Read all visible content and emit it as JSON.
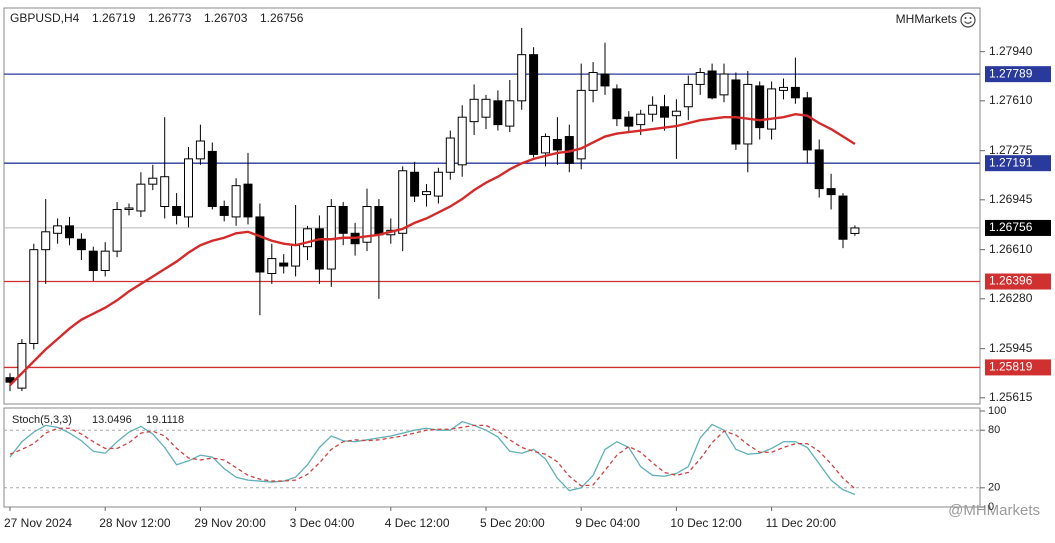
{
  "chart_data": [
    {
      "type": "candlestick",
      "symbol": "GBPUSD,H4",
      "quote": [
        1.26719,
        1.26773,
        1.26703,
        1.26756
      ],
      "brand": "MHMarkets",
      "watermark": "@MHMarkets",
      "categories": [
        "27 Nov 2024",
        null,
        null,
        null,
        null,
        null,
        null,
        null,
        "28 Nov 12:00",
        null,
        null,
        null,
        null,
        null,
        null,
        null,
        "29 Nov 20:00",
        null,
        null,
        null,
        null,
        null,
        null,
        null,
        "3 Dec 04:00",
        null,
        null,
        null,
        null,
        null,
        null,
        null,
        "4 Dec 12:00",
        null,
        null,
        null,
        null,
        null,
        null,
        null,
        "5 Dec 20:00",
        null,
        null,
        null,
        null,
        null,
        null,
        null,
        "9 Dec 04:00",
        null,
        null,
        null,
        null,
        null,
        null,
        null,
        "10 Dec 12:00",
        null,
        null,
        null,
        null,
        null,
        null,
        null,
        "11 Dec 20:00",
        null,
        null,
        null,
        null,
        null,
        null,
        null
      ],
      "open": [
        1.2575,
        1.2568,
        1.2598,
        1.2661,
        1.2672,
        1.2677,
        1.2668,
        1.266,
        1.2647,
        1.266,
        1.2688,
        1.2687,
        1.2705,
        1.269,
        1.269,
        1.2683,
        1.2722,
        1.2727,
        1.269,
        1.2683,
        1.2705,
        1.2683,
        1.2645,
        1.2652,
        1.265,
        1.2663,
        1.2675,
        1.2648,
        1.269,
        1.2672,
        1.2666,
        1.269,
        1.2671,
        1.2672,
        1.2713,
        1.2698,
        1.2697,
        1.2713,
        1.2718,
        1.2747,
        1.275,
        1.2761,
        1.2744,
        1.2761,
        1.2792,
        1.2726,
        1.2735,
        1.2737,
        1.2722,
        1.2768,
        1.2779,
        1.2769,
        1.275,
        1.2745,
        1.2752,
        1.2757,
        1.2751,
        1.2757,
        1.2772,
        1.2781,
        1.2765,
        1.2775,
        1.2732,
        1.2771,
        1.2742,
        1.2768,
        1.277,
        1.2763,
        1.2728,
        1.2702,
        1.2697,
        1.26719
      ],
      "high": [
        1.2578,
        1.2601,
        1.2665,
        1.2695,
        1.2682,
        1.2683,
        1.2672,
        1.2663,
        1.2666,
        1.2693,
        1.2692,
        1.2713,
        1.2718,
        1.275,
        1.2699,
        1.273,
        1.2745,
        1.2733,
        1.2694,
        1.2709,
        1.2726,
        1.2692,
        1.2665,
        1.2658,
        1.2691,
        1.2677,
        1.2684,
        1.2695,
        1.2693,
        1.2679,
        1.2702,
        1.2695,
        1.2682,
        1.2717,
        1.272,
        1.2705,
        1.2716,
        1.2741,
        1.2758,
        1.2772,
        1.2765,
        1.2768,
        1.2775,
        1.281,
        1.2797,
        1.2739,
        1.275,
        1.2745,
        1.2786,
        1.2787,
        1.28,
        1.2772,
        1.2754,
        1.2755,
        1.2764,
        1.2765,
        1.2762,
        1.2778,
        1.2783,
        1.2786,
        1.2786,
        1.278,
        1.2781,
        1.2774,
        1.2774,
        1.2776,
        1.279,
        1.2767,
        1.2735,
        1.2712,
        1.2699,
        1.26773
      ],
      "low": [
        1.2566,
        1.2566,
        1.2594,
        1.2638,
        1.2665,
        1.2664,
        1.2654,
        1.264,
        1.2643,
        1.2656,
        1.2684,
        1.2683,
        1.2701,
        1.2682,
        1.2678,
        1.2676,
        1.2718,
        1.2688,
        1.268,
        1.2677,
        1.2678,
        1.2617,
        1.2638,
        1.2645,
        1.2643,
        1.2654,
        1.2638,
        1.2636,
        1.2664,
        1.2657,
        1.266,
        1.2628,
        1.2665,
        1.266,
        1.2693,
        1.269,
        1.2692,
        1.2708,
        1.271,
        1.2738,
        1.2742,
        1.2741,
        1.274,
        1.2755,
        1.2723,
        1.2717,
        1.2718,
        1.2713,
        1.2715,
        1.276,
        1.2765,
        1.2744,
        1.274,
        1.2738,
        1.2747,
        1.2741,
        1.2722,
        1.2748,
        1.2765,
        1.2762,
        1.276,
        1.2728,
        1.2713,
        1.2735,
        1.2735,
        1.2762,
        1.2759,
        1.2719,
        1.2696,
        1.2688,
        1.2662,
        1.26703
      ],
      "close": [
        1.2572,
        1.2598,
        1.2661,
        1.2673,
        1.2677,
        1.2669,
        1.2661,
        1.2647,
        1.266,
        1.2688,
        1.2689,
        1.2705,
        1.2709,
        1.271,
        1.2684,
        1.2722,
        1.2734,
        1.269,
        1.2684,
        1.2704,
        1.2683,
        1.2646,
        1.2655,
        1.265,
        1.2664,
        1.2675,
        1.2648,
        1.269,
        1.2672,
        1.2665,
        1.269,
        1.2671,
        1.2674,
        1.2714,
        1.2697,
        1.27,
        1.2713,
        1.2736,
        1.275,
        1.2762,
        1.2762,
        1.2745,
        1.2761,
        1.2792,
        1.2725,
        1.2737,
        1.2728,
        1.2719,
        1.2768,
        1.278,
        1.2771,
        1.2749,
        1.2744,
        1.2752,
        1.2758,
        1.275,
        1.2754,
        1.2772,
        1.278,
        1.2763,
        1.2779,
        1.2732,
        1.2772,
        1.2743,
        1.2769,
        1.277,
        1.2763,
        1.2728,
        1.2702,
        1.2698,
        1.2668,
        1.26756
      ],
      "bull_color": "#ffffff",
      "bear_color": "#000000",
      "moving_average": {
        "color": "#d42a2a",
        "values": [
          1.257,
          1.2578,
          1.2586,
          1.2594,
          1.2601,
          1.2608,
          1.2614,
          1.2618,
          1.2622,
          1.2627,
          1.2633,
          1.2638,
          1.2643,
          1.2648,
          1.2653,
          1.2659,
          1.2664,
          1.2667,
          1.2669,
          1.2672,
          1.2673,
          1.267,
          1.2667,
          1.2665,
          1.2664,
          1.2666,
          1.2668,
          1.2668,
          1.2669,
          1.2669,
          1.267,
          1.2671,
          1.2673,
          1.2675,
          1.2679,
          1.2682,
          1.2686,
          1.269,
          1.2695,
          1.2701,
          1.2706,
          1.271,
          1.2715,
          1.2719,
          1.2722,
          1.2724,
          1.2726,
          1.2727,
          1.2729,
          1.2733,
          1.2737,
          1.2739,
          1.274,
          1.2741,
          1.2742,
          1.2743,
          1.2744,
          1.2746,
          1.2748,
          1.2749,
          1.275,
          1.275,
          1.2749,
          1.2748,
          1.2749,
          1.275,
          1.2752,
          1.2751,
          1.2746,
          1.2742,
          1.2737,
          1.2732
        ]
      },
      "levels": [
        {
          "value": 1.27789,
          "color": "#2a3a9c"
        },
        {
          "value": 1.27191,
          "color": "#2a3a9c"
        },
        {
          "value": 1.26396,
          "color": "#d03030"
        },
        {
          "value": 1.25819,
          "color": "#d03030"
        }
      ],
      "last_price": {
        "value": 1.26756,
        "color": "#b8b8b8",
        "label_color": "#000000"
      },
      "ylim": [
        1.2558,
        1.2822
      ],
      "yticks": [
        {
          "value": 1.2794,
          "label": "1.27940"
        },
        {
          "value": 1.2761,
          "label": "1.27610"
        },
        1.27275,
        1.26945,
        {
          "value": 1.2661,
          "label": "1.26610"
        },
        {
          "value": 1.2628,
          "label": "1.26280"
        },
        1.25945,
        1.25615
      ],
      "grid": false
    },
    {
      "type": "line",
      "title": "Stoch(5,3,3)",
      "readout": [
        13.0496,
        19.1118
      ],
      "series": [
        {
          "color": "#5fb0b8",
          "dash": false,
          "values": [
            52,
            68,
            78,
            85,
            83,
            77,
            69,
            58,
            56,
            68,
            78,
            84,
            76,
            62,
            44,
            48,
            54,
            52,
            40,
            31,
            28,
            27,
            26,
            27,
            31,
            44,
            62,
            74,
            69,
            68,
            70,
            72,
            74,
            77,
            80,
            82,
            80,
            80,
            89,
            85,
            80,
            73,
            58,
            56,
            60,
            50,
            30,
            17,
            20,
            33,
            60,
            68,
            62,
            42,
            33,
            32,
            35,
            42,
            72,
            86,
            80,
            60,
            55,
            56,
            61,
            68,
            68,
            62,
            45,
            28,
            18,
            13.0496
          ]
        },
        {
          "color": "#d04040",
          "dash": true,
          "values": [
            55,
            60,
            66,
            77,
            82,
            82,
            76,
            68,
            61,
            61,
            67,
            77,
            79,
            74,
            61,
            51,
            49,
            51,
            49,
            41,
            33,
            29,
            27,
            27,
            28,
            34,
            46,
            60,
            68,
            70,
            69,
            70,
            72,
            74,
            77,
            80,
            81,
            81,
            83,
            85,
            85,
            79,
            70,
            62,
            58,
            55,
            47,
            32,
            22,
            23,
            38,
            54,
            63,
            57,
            46,
            36,
            33,
            36,
            50,
            67,
            79,
            75,
            65,
            57,
            57,
            62,
            66,
            66,
            58,
            45,
            30,
            19.1118
          ]
        }
      ],
      "levels": [
        20,
        80
      ],
      "ylim": [
        0,
        100
      ],
      "yticks": [
        0,
        20,
        80,
        100
      ]
    }
  ]
}
